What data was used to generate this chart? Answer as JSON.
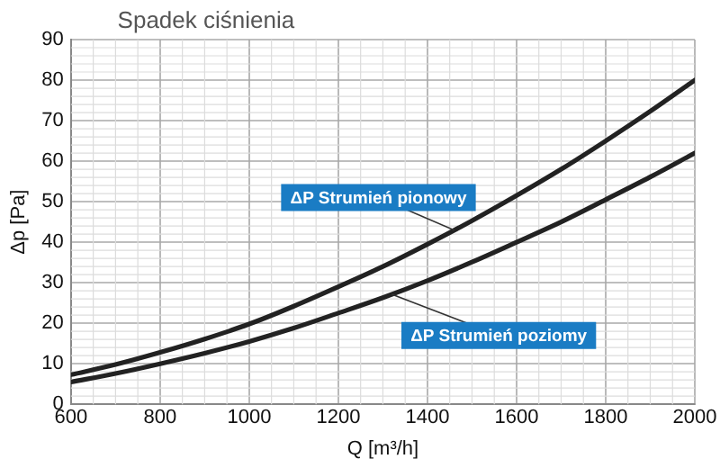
{
  "chart_data": {
    "type": "line",
    "title": "Spadek ciśnienia",
    "xlabel": "Q [m³/h]",
    "ylabel": "Δp [Pa]",
    "x": [
      600,
      700,
      800,
      900,
      1000,
      1100,
      1200,
      1300,
      1400,
      1500,
      1600,
      1700,
      1800,
      1900,
      2000
    ],
    "series": [
      {
        "name": "ΔP Strumień pionowy",
        "color": "#222222",
        "values": [
          7.3,
          9.8,
          12.8,
          16.1,
          19.8,
          24.2,
          29,
          34,
          39.5,
          45.3,
          51.5,
          58,
          65,
          72.3,
          80
        ]
      },
      {
        "name": "ΔP Strumień poziomy",
        "color": "#222222",
        "values": [
          5.5,
          7.6,
          10,
          12.6,
          15.5,
          18.8,
          22.5,
          26.3,
          30.5,
          35.1,
          40,
          45,
          50.5,
          56.1,
          62
        ]
      }
    ],
    "xlim": [
      600,
      2000
    ],
    "xticks": [
      600,
      800,
      1000,
      1200,
      1400,
      1600,
      1800,
      2000
    ],
    "ylim": [
      0,
      90
    ],
    "yticks": [
      0,
      10,
      20,
      30,
      40,
      50,
      60,
      70,
      80,
      90
    ],
    "grid": true,
    "legend": false,
    "marker": "none",
    "line_style": "solid"
  }
}
